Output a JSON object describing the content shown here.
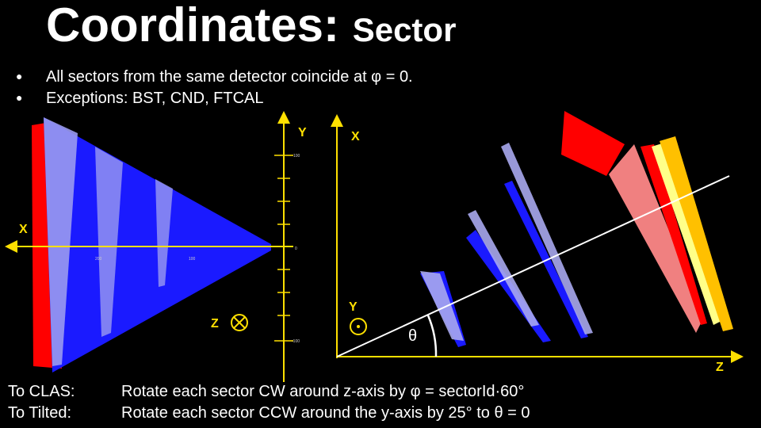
{
  "title": {
    "main": "Coordinates:",
    "sub": "Sector"
  },
  "bullets": [
    "All sectors from the same detector coincide at φ = 0.",
    "Exceptions: BST, CND, FTCAL"
  ],
  "left_diagram": {
    "axis_labels": {
      "x": "X",
      "y": "Y",
      "z": "Z"
    },
    "y_ticks": [
      "100",
      "0",
      "-100"
    ],
    "x_ticks": [
      "200",
      "100"
    ]
  },
  "right_diagram": {
    "axis_labels": {
      "x": "X",
      "y": "Y",
      "z": "Z"
    },
    "angle": "θ"
  },
  "notes": [
    {
      "label": "To CLAS:",
      "text": "Rotate each sector CW around z-axis by φ = sectorId·60°"
    },
    {
      "label": "To Tilted:",
      "text": "Rotate each sector CCW around the y-axis by 25° to θ = 0"
    }
  ]
}
